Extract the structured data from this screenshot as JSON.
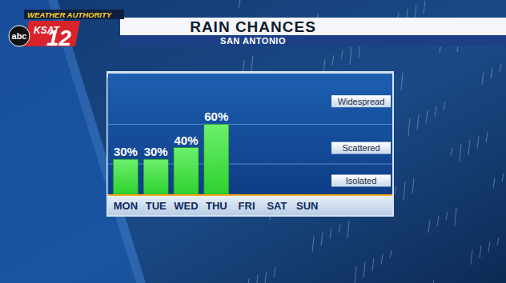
{
  "chart_data": {
    "type": "bar",
    "title": "RAIN CHANCES",
    "subtitle": "SAN ANTONIO",
    "annotations": [
      "WEATHER AUTHORITY",
      "KSAT",
      "12",
      "abc"
    ],
    "categories": [
      "MON",
      "TUE",
      "WED",
      "THU",
      "FRI",
      "SAT",
      "SUN"
    ],
    "values": [
      30,
      30,
      40,
      60,
      null,
      null,
      null
    ],
    "value_labels": [
      "30%",
      "30%",
      "40%",
      "60%",
      null,
      null,
      null
    ],
    "color": "#2ed12e",
    "data_labels": true,
    "ylim": [
      0,
      100
    ],
    "yticks": [
      {
        "value": 12,
        "label": "Isolated"
      },
      {
        "value": 40,
        "label": "Scattered"
      },
      {
        "value": 80,
        "label": "Widespread"
      }
    ],
    "grid": true
  }
}
